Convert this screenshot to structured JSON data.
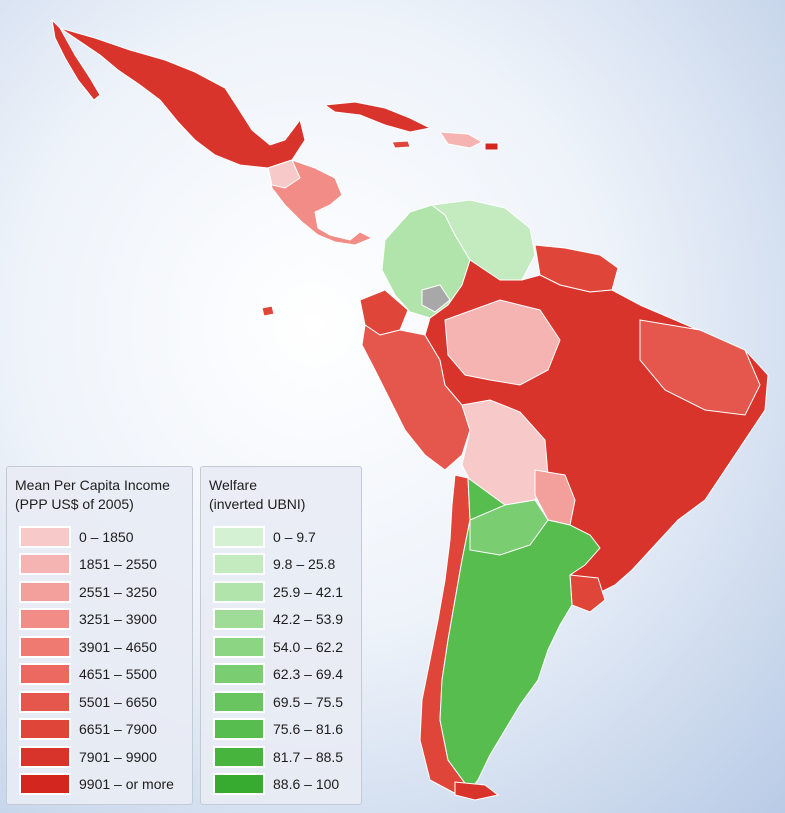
{
  "income_legend": {
    "title_line1": "Mean Per Capita Income",
    "title_line2": "(PPP US$ of 2005)",
    "items": [
      {
        "label": "0 – 1850",
        "color": "#f7c9c9"
      },
      {
        "label": "1851 – 2550",
        "color": "#f5b3b1"
      },
      {
        "label": "2551 – 3250",
        "color": "#f39f9b"
      },
      {
        "label": "3251 – 3900",
        "color": "#f18c86"
      },
      {
        "label": "3901 – 4650",
        "color": "#ee7a72"
      },
      {
        "label": "4651 – 5500",
        "color": "#eb6960"
      },
      {
        "label": "5501 – 6650",
        "color": "#e5564c"
      },
      {
        "label": "6651 – 7900",
        "color": "#e0453a"
      },
      {
        "label": "7901 – 9900",
        "color": "#d9342b"
      },
      {
        "label": "9901 – or more",
        "color": "#d3261f"
      }
    ]
  },
  "welfare_legend": {
    "title_line1": "Welfare",
    "title_line2": "(inverted UBNI)",
    "items": [
      {
        "label": "0 – 9.7",
        "color": "#d5f1d3"
      },
      {
        "label": "9.8 – 25.8",
        "color": "#c3ebbf"
      },
      {
        "label": "25.9 – 42.1",
        "color": "#b1e4ab"
      },
      {
        "label": "42.2 – 53.9",
        "color": "#9edc97"
      },
      {
        "label": "54.0 – 62.2",
        "color": "#8cd583"
      },
      {
        "label": "62.3 – 69.4",
        "color": "#7acd71"
      },
      {
        "label": "69.5 – 75.5",
        "color": "#68c55f"
      },
      {
        "label": "75.6 – 81.6",
        "color": "#57bd4e"
      },
      {
        "label": "81.7 – 88.5",
        "color": "#47b43e"
      },
      {
        "label": "88.6 – 100",
        "color": "#37ab2f"
      }
    ]
  },
  "map_colors": {
    "income_high": "#d9342b",
    "income_mid": "#e5564c",
    "income_low": "#f5b3b1",
    "welfare_low": "#b1e4ab",
    "welfare_high": "#57bd4e",
    "no_data": "#a8a8a8",
    "coast": "#ffffff"
  }
}
